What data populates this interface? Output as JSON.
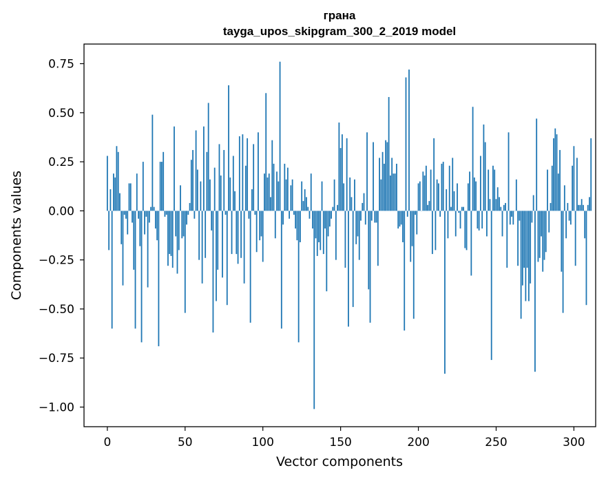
{
  "chart_data": {
    "type": "bar",
    "title": "грана",
    "subtitle": "tayga_upos_skipgram_300_2_2019 model",
    "xlabel": "Vector components",
    "ylabel": "Components values",
    "xlim": [
      -15,
      314
    ],
    "ylim": [
      -1.1,
      0.85
    ],
    "xticks": [
      0,
      50,
      100,
      150,
      200,
      250,
      300
    ],
    "yticks": [
      0.75,
      0.5,
      0.25,
      0.0,
      -0.25,
      -0.5,
      -0.75,
      -1.0
    ],
    "ytick_labels": [
      "0.75",
      "0.50",
      "0.25",
      "0.00",
      "−0.25",
      "−0.50",
      "−0.75",
      "−1.00"
    ],
    "bar_color": "#1f77b4",
    "values": [
      0.28,
      -0.2,
      0.11,
      -0.6,
      0.19,
      0.17,
      0.33,
      0.3,
      0.09,
      -0.17,
      -0.38,
      -0.02,
      -0.04,
      -0.12,
      0.14,
      0.14,
      -0.06,
      -0.3,
      -0.6,
      0.19,
      -0.04,
      -0.18,
      -0.67,
      0.25,
      -0.12,
      -0.03,
      -0.39,
      -0.06,
      0.02,
      0.49,
      0.02,
      -0.09,
      -0.15,
      -0.69,
      0.25,
      0.25,
      0.3,
      -0.03,
      -0.02,
      -0.28,
      -0.22,
      -0.23,
      -0.29,
      0.43,
      -0.13,
      -0.32,
      -0.2,
      0.13,
      -0.14,
      -0.13,
      -0.52,
      -0.07,
      -0.02,
      0.04,
      0.26,
      0.31,
      -0.04,
      0.41,
      0.21,
      -0.25,
      0.15,
      -0.37,
      0.43,
      -0.24,
      0.3,
      0.55,
      0.16,
      -0.1,
      -0.62,
      0.22,
      -0.46,
      -0.3,
      0.34,
      0.18,
      -0.34,
      0.31,
      -0.02,
      -0.48,
      0.64,
      0.17,
      -0.22,
      0.28,
      0.1,
      -0.22,
      -0.27,
      0.38,
      -0.24,
      0.39,
      -0.37,
      0.23,
      0.37,
      -0.04,
      -0.57,
      0.11,
      0.34,
      -0.02,
      -0.21,
      0.4,
      -0.15,
      -0.13,
      -0.26,
      0.19,
      0.6,
      0.17,
      0.19,
      0.07,
      0.36,
      0.24,
      -0.14,
      0.2,
      0.15,
      0.76,
      -0.6,
      -0.07,
      0.24,
      0.16,
      0.22,
      -0.04,
      0.13,
      0.16,
      -0.02,
      -0.09,
      -0.15,
      -0.67,
      -0.16,
      0.15,
      0.05,
      0.11,
      0.07,
      0.02,
      -0.04,
      0.19,
      -0.09,
      -1.01,
      -0.14,
      -0.23,
      -0.16,
      -0.2,
      0.15,
      -0.22,
      -0.09,
      -0.41,
      -0.13,
      -0.08,
      -0.04,
      0.02,
      0.16,
      -0.25,
      0.03,
      0.45,
      0.32,
      0.39,
      0.14,
      -0.29,
      0.37,
      -0.59,
      0.17,
      0.07,
      -0.49,
      0.16,
      -0.17,
      -0.13,
      -0.25,
      -0.05,
      0.04,
      0.09,
      -0.07,
      0.4,
      -0.4,
      -0.57,
      -0.05,
      0.35,
      -0.06,
      -0.06,
      -0.28,
      0.27,
      0.16,
      0.3,
      0.24,
      0.36,
      0.35,
      0.58,
      0.18,
      0.27,
      0.19,
      0.19,
      0.24,
      -0.09,
      -0.08,
      -0.07,
      -0.16,
      -0.61,
      0.68,
      -0.03,
      0.72,
      -0.26,
      -0.18,
      -0.55,
      -0.02,
      -0.12,
      0.14,
      0.15,
      0.0,
      0.2,
      0.18,
      0.23,
      0.03,
      0.05,
      0.21,
      -0.22,
      0.37,
      -0.2,
      0.16,
      0.14,
      -0.03,
      0.24,
      0.25,
      -0.83,
      0.11,
      -0.14,
      0.23,
      0.02,
      0.27,
      0.1,
      -0.13,
      0.14,
      -0.01,
      -0.09,
      0.02,
      0.02,
      -0.19,
      -0.2,
      0.14,
      0.2,
      -0.33,
      0.53,
      0.17,
      0.15,
      -0.09,
      -0.1,
      0.28,
      -0.09,
      0.44,
      0.35,
      -0.13,
      0.21,
      0.06,
      -0.76,
      0.23,
      0.21,
      0.06,
      0.12,
      0.07,
      0.02,
      -0.13,
      0.03,
      0.04,
      -0.29,
      0.4,
      -0.07,
      -0.03,
      -0.07,
      0.0,
      0.16,
      -0.28,
      -0.05,
      -0.55,
      -0.38,
      -0.29,
      -0.46,
      -0.29,
      -0.46,
      -0.37,
      -0.06,
      0.08,
      -0.82,
      0.47,
      -0.26,
      -0.24,
      -0.13,
      -0.31,
      -0.25,
      -0.21,
      0.21,
      -0.11,
      0.04,
      0.23,
      0.37,
      0.42,
      0.39,
      0.19,
      0.31,
      -0.31,
      -0.52,
      0.13,
      -0.14,
      0.04,
      -0.05,
      -0.07,
      0.23,
      0.33,
      -0.28,
      0.27,
      0.03,
      0.03,
      0.06,
      0.03,
      -0.14,
      -0.48,
      0.03,
      0.07,
      0.37
    ]
  }
}
